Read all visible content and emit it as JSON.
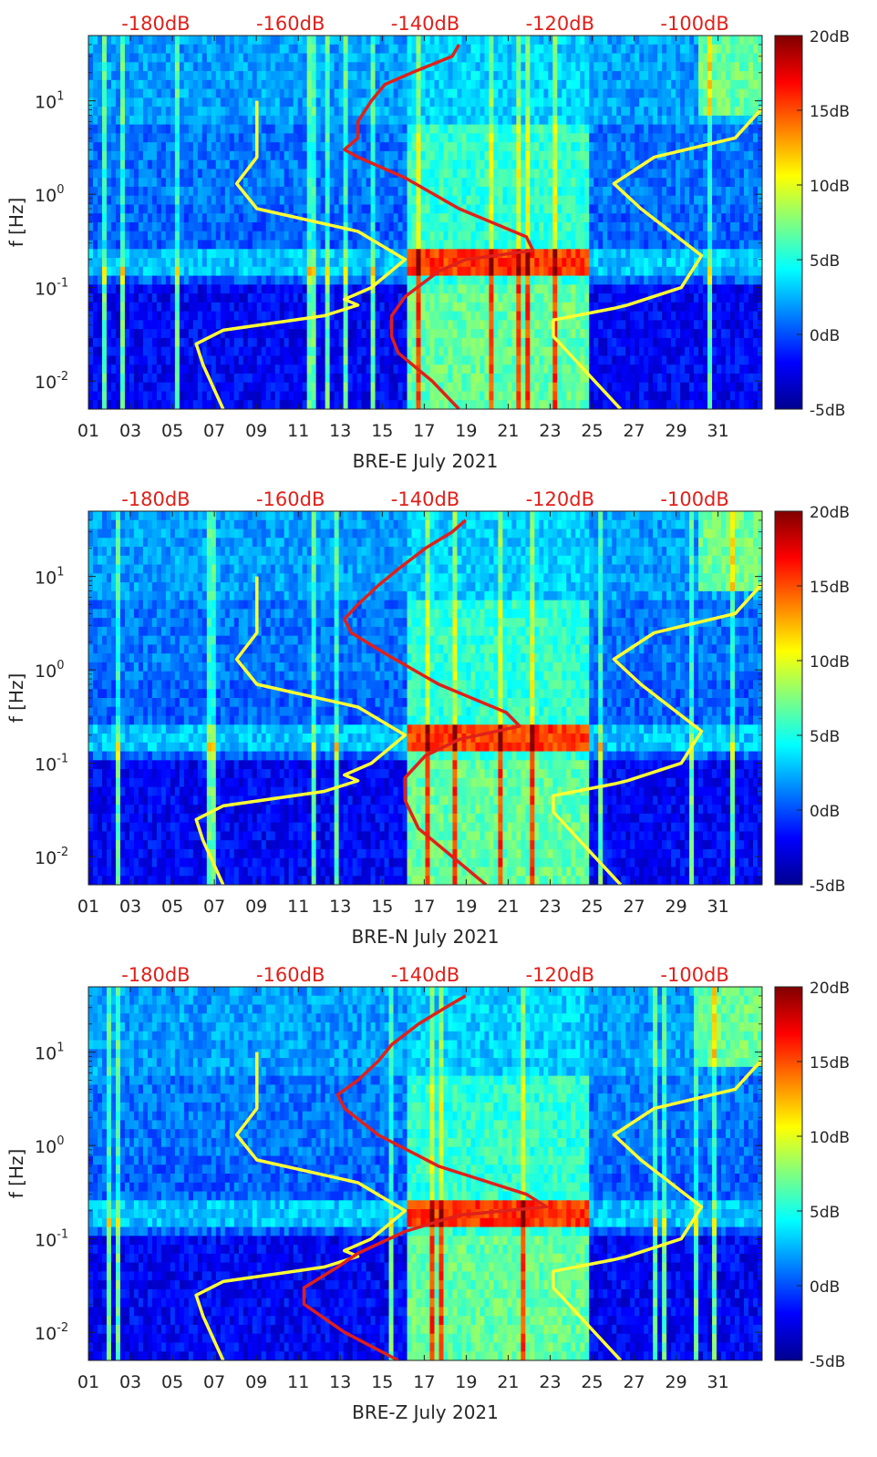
{
  "chart_data": [
    {
      "type": "heatmap",
      "xlabel": "BRE-E July 2021",
      "ylabel": "f [Hz]",
      "x_ticks": [
        "01",
        "03",
        "05",
        "07",
        "09",
        "11",
        "13",
        "15",
        "17",
        "19",
        "21",
        "23",
        "25",
        "27",
        "29",
        "31"
      ],
      "y_ticks": [
        {
          "value": 0.01,
          "base": "10",
          "exp": "-2"
        },
        {
          "value": 0.1,
          "base": "10",
          "exp": "-1"
        },
        {
          "value": 1,
          "base": "10",
          "exp": "0"
        },
        {
          "value": 10,
          "base": "10",
          "exp": "1"
        }
      ],
      "top_ticks": [
        "-180dB",
        "-160dB",
        "-140dB",
        "-120dB",
        "-100dB"
      ],
      "colorbar_ticks": [
        "20dB",
        "15dB",
        "10dB",
        "5dB",
        "0dB",
        "-5dB"
      ],
      "ylim": [
        0.005,
        50
      ],
      "y_scale": "log",
      "colormap": "jet",
      "series": [
        {
          "color": "#ffff33",
          "points": [
            [
              -170,
              0.005
            ],
            [
              -173,
              0.015
            ],
            [
              -174,
              0.025
            ],
            [
              -170,
              0.035
            ],
            [
              -155,
              0.05
            ],
            [
              -150,
              0.065
            ],
            [
              -152,
              0.075
            ],
            [
              -148,
              0.1
            ],
            [
              -143,
              0.2
            ],
            [
              -150,
              0.4
            ],
            [
              -165,
              0.7
            ],
            [
              -168,
              1.3
            ],
            [
              -165,
              2.5
            ],
            [
              -165,
              10
            ]
          ]
        },
        {
          "color": "#ffff33",
          "points": [
            [
              -111,
              0.005
            ],
            [
              -121,
              0.03
            ],
            [
              -121,
              0.045
            ],
            [
              -112,
              0.06
            ],
            [
              -110,
              0.065
            ],
            [
              -102,
              0.1
            ],
            [
              -99,
              0.22
            ],
            [
              -108,
              0.7
            ],
            [
              -112,
              1.3
            ],
            [
              -106,
              2.5
            ],
            [
              -94,
              4
            ],
            [
              -89,
              10
            ]
          ]
        },
        {
          "color": "#e0201a",
          "points": [
            [
              -135,
              0.005
            ],
            [
              -139,
              0.01
            ],
            [
              -144,
              0.02
            ],
            [
              -145,
              0.03
            ],
            [
              -145,
              0.05
            ],
            [
              -143,
              0.08
            ],
            [
              -138,
              0.15
            ],
            [
              -134,
              0.2
            ],
            [
              -124,
              0.25
            ],
            [
              -125,
              0.35
            ],
            [
              -135,
              0.7
            ],
            [
              -143,
              1.5
            ],
            [
              -150,
              2.5
            ],
            [
              -152,
              3
            ],
            [
              -150,
              4
            ],
            [
              -150,
              6
            ],
            [
              -148,
              10
            ],
            [
              -146,
              15
            ],
            [
              -142,
              20
            ],
            [
              -136,
              30
            ],
            [
              -135,
              40
            ]
          ]
        }
      ],
      "bottom_start": 1
    },
    {
      "type": "heatmap",
      "xlabel": "BRE-N July 2021",
      "ylabel": "f [Hz]",
      "x_ticks": [
        "01",
        "03",
        "05",
        "07",
        "09",
        "11",
        "13",
        "15",
        "17",
        "19",
        "21",
        "23",
        "25",
        "27",
        "29",
        "31"
      ],
      "y_ticks": [
        {
          "value": 0.01,
          "base": "10",
          "exp": "-2"
        },
        {
          "value": 0.1,
          "base": "10",
          "exp": "-1"
        },
        {
          "value": 1,
          "base": "10",
          "exp": "0"
        },
        {
          "value": 10,
          "base": "10",
          "exp": "1"
        }
      ],
      "top_ticks": [
        "-180dB",
        "-160dB",
        "-140dB",
        "-120dB",
        "-100dB"
      ],
      "colorbar_ticks": [
        "20dB",
        "15dB",
        "10dB",
        "5dB",
        "0dB",
        "-5dB"
      ],
      "ylim": [
        0.005,
        50
      ],
      "y_scale": "log",
      "colormap": "jet",
      "series": [
        {
          "color": "#ffff33",
          "points": [
            [
              -170,
              0.005
            ],
            [
              -173,
              0.015
            ],
            [
              -174,
              0.025
            ],
            [
              -170,
              0.035
            ],
            [
              -155,
              0.05
            ],
            [
              -150,
              0.065
            ],
            [
              -152,
              0.075
            ],
            [
              -148,
              0.1
            ],
            [
              -143,
              0.2
            ],
            [
              -150,
              0.4
            ],
            [
              -165,
              0.7
            ],
            [
              -168,
              1.3
            ],
            [
              -165,
              2.5
            ],
            [
              -165,
              10
            ]
          ]
        },
        {
          "color": "#ffff33",
          "points": [
            [
              -111,
              0.005
            ],
            [
              -121,
              0.03
            ],
            [
              -121,
              0.045
            ],
            [
              -112,
              0.06
            ],
            [
              -110,
              0.065
            ],
            [
              -102,
              0.1
            ],
            [
              -99,
              0.22
            ],
            [
              -108,
              0.7
            ],
            [
              -112,
              1.3
            ],
            [
              -106,
              2.5
            ],
            [
              -94,
              4
            ],
            [
              -89,
              10
            ]
          ]
        },
        {
          "color": "#e0201a",
          "points": [
            [
              -131,
              0.005
            ],
            [
              -136,
              0.01
            ],
            [
              -141,
              0.02
            ],
            [
              -143,
              0.04
            ],
            [
              -143,
              0.07
            ],
            [
              -140,
              0.12
            ],
            [
              -135,
              0.18
            ],
            [
              -126,
              0.25
            ],
            [
              -128,
              0.35
            ],
            [
              -138,
              0.7
            ],
            [
              -146,
              1.5
            ],
            [
              -151,
              2.5
            ],
            [
              -152,
              3.5
            ],
            [
              -150,
              5
            ],
            [
              -147,
              8
            ],
            [
              -144,
              12
            ],
            [
              -140,
              20
            ],
            [
              -136,
              30
            ],
            [
              -134,
              40
            ]
          ]
        }
      ],
      "bottom_start": 1
    },
    {
      "type": "heatmap",
      "xlabel": "BRE-Z July 2021",
      "ylabel": "f [Hz]",
      "x_ticks": [
        "01",
        "03",
        "05",
        "07",
        "09",
        "11",
        "13",
        "15",
        "17",
        "19",
        "21",
        "23",
        "25",
        "27",
        "29",
        "31"
      ],
      "y_ticks": [
        {
          "value": 0.01,
          "base": "10",
          "exp": "-2"
        },
        {
          "value": 0.1,
          "base": "10",
          "exp": "-1"
        },
        {
          "value": 1,
          "base": "10",
          "exp": "0"
        },
        {
          "value": 10,
          "base": "10",
          "exp": "1"
        }
      ],
      "top_ticks": [
        "-180dB",
        "-160dB",
        "-140dB",
        "-120dB",
        "-100dB"
      ],
      "colorbar_ticks": [
        "20dB",
        "15dB",
        "10dB",
        "5dB",
        "0dB",
        "-5dB"
      ],
      "ylim": [
        0.005,
        50
      ],
      "y_scale": "log",
      "colormap": "jet",
      "series": [
        {
          "color": "#ffff33",
          "points": [
            [
              -170,
              0.005
            ],
            [
              -173,
              0.015
            ],
            [
              -174,
              0.025
            ],
            [
              -170,
              0.035
            ],
            [
              -155,
              0.05
            ],
            [
              -150,
              0.065
            ],
            [
              -152,
              0.075
            ],
            [
              -148,
              0.1
            ],
            [
              -143,
              0.2
            ],
            [
              -150,
              0.4
            ],
            [
              -165,
              0.7
            ],
            [
              -168,
              1.3
            ],
            [
              -165,
              2.5
            ],
            [
              -165,
              10
            ]
          ]
        },
        {
          "color": "#ffff33",
          "points": [
            [
              -111,
              0.005
            ],
            [
              -121,
              0.03
            ],
            [
              -121,
              0.045
            ],
            [
              -112,
              0.06
            ],
            [
              -110,
              0.065
            ],
            [
              -102,
              0.1
            ],
            [
              -99,
              0.22
            ],
            [
              -108,
              0.7
            ],
            [
              -112,
              1.3
            ],
            [
              -106,
              2.5
            ],
            [
              -94,
              4
            ],
            [
              -89,
              10
            ]
          ]
        },
        {
          "color": "#e0201a",
          "points": [
            [
              -144,
              0.005
            ],
            [
              -152,
              0.01
            ],
            [
              -158,
              0.02
            ],
            [
              -158,
              0.03
            ],
            [
              -153,
              0.05
            ],
            [
              -150,
              0.07
            ],
            [
              -143,
              0.12
            ],
            [
              -135,
              0.18
            ],
            [
              -122,
              0.22
            ],
            [
              -125,
              0.3
            ],
            [
              -138,
              0.6
            ],
            [
              -147,
              1.3
            ],
            [
              -152,
              2.5
            ],
            [
              -153,
              3.5
            ],
            [
              -150,
              5
            ],
            [
              -147,
              8
            ],
            [
              -145,
              12
            ],
            [
              -141,
              20
            ],
            [
              -137,
              30
            ],
            [
              -134,
              40
            ]
          ]
        }
      ],
      "bottom_start": 1
    }
  ]
}
